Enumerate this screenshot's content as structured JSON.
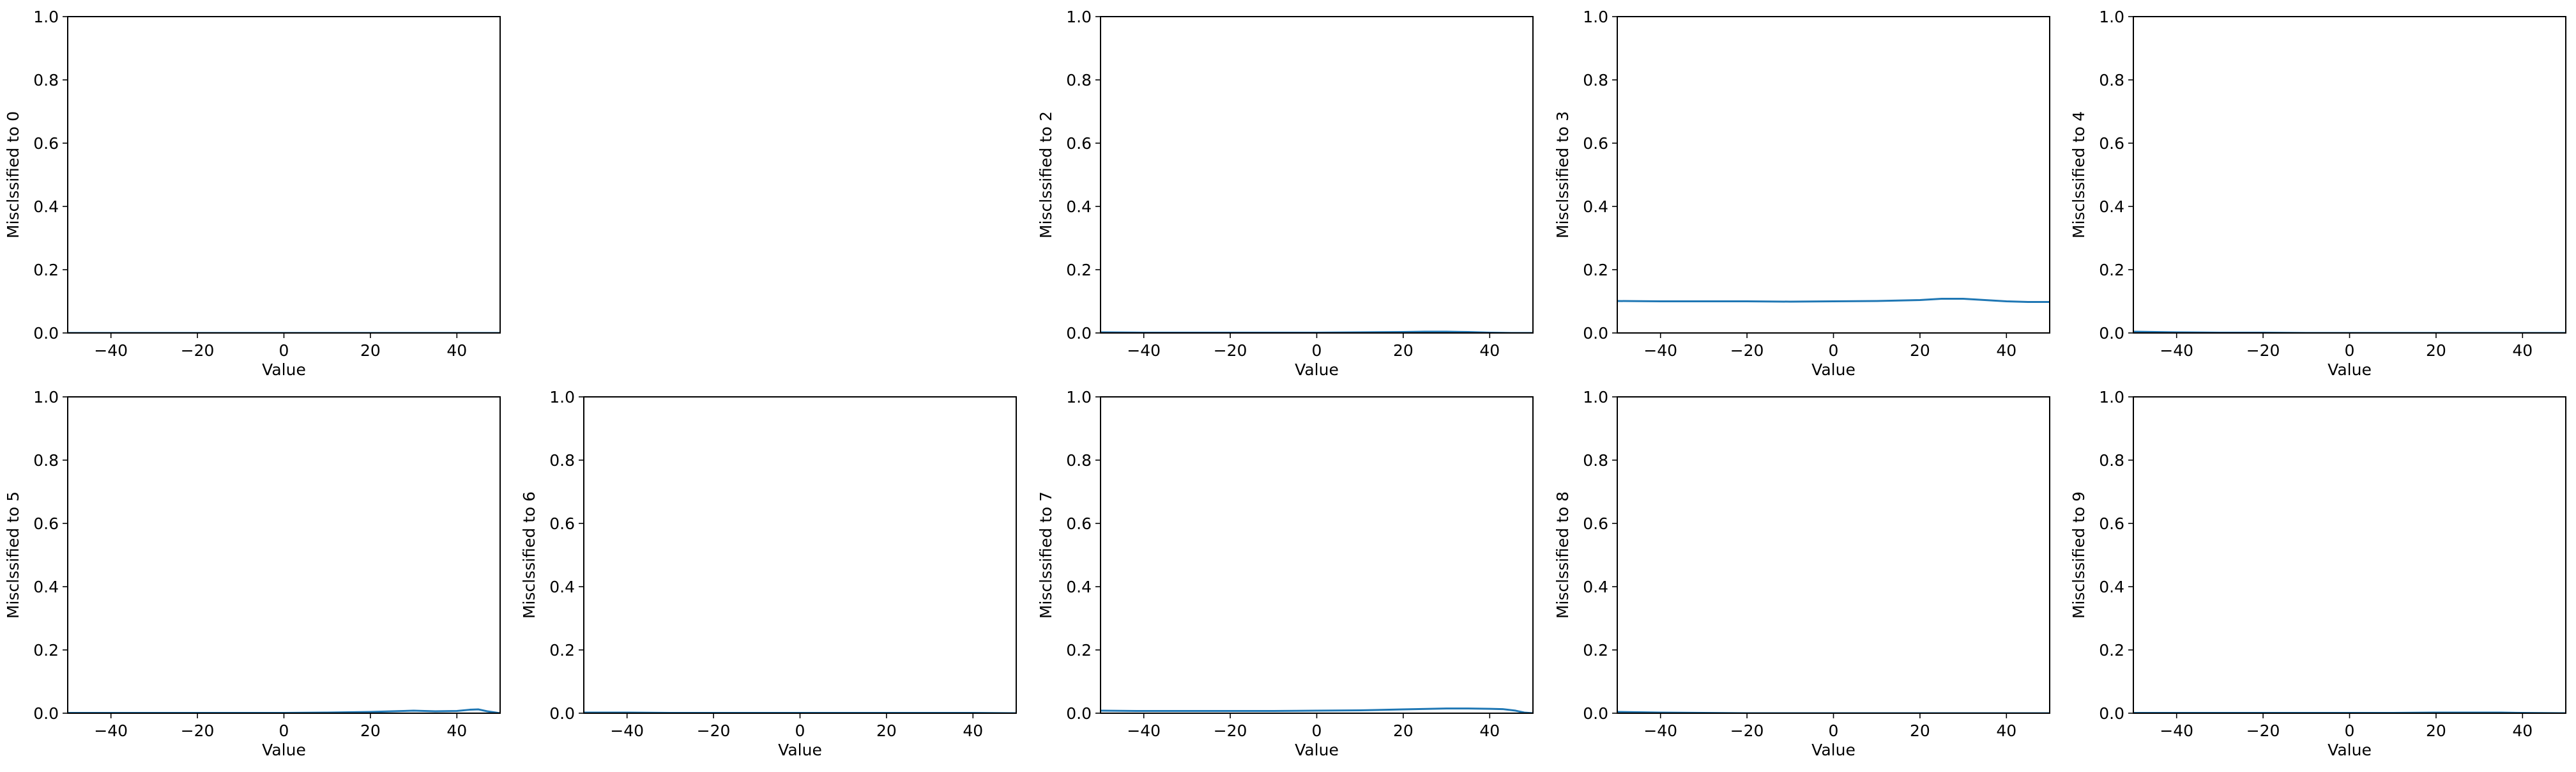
{
  "figure": {
    "background": "#ffffff",
    "line_color": "#1f77b4"
  },
  "chart_data": [
    {
      "type": "line",
      "row": 0,
      "col": 0,
      "xlabel": "Value",
      "ylabel": "Misclssified to 0",
      "xlim": [
        -50,
        50
      ],
      "ylim": [
        0,
        1
      ],
      "xticks": [
        -40,
        -20,
        0,
        20,
        40
      ],
      "xtick_labels": [
        "−40",
        "−20",
        "0",
        "20",
        "40"
      ],
      "yticks": [
        0,
        0.2,
        0.4,
        0.6,
        0.8,
        1.0
      ],
      "ytick_labels": [
        "0.0",
        "0.2",
        "0.4",
        "0.6",
        "0.8",
        "1.0"
      ],
      "series": [
        {
          "x": [
            -50,
            -40,
            -30,
            -20,
            -10,
            0,
            10,
            20,
            30,
            40,
            50
          ],
          "y": [
            0,
            0,
            0,
            0,
            0,
            0,
            0,
            0,
            0,
            0,
            0
          ]
        }
      ]
    },
    {
      "type": "line",
      "row": 0,
      "col": 2,
      "xlabel": "Value",
      "ylabel": "Misclssified to 2",
      "xlim": [
        -50,
        50
      ],
      "ylim": [
        0,
        1
      ],
      "xticks": [
        -40,
        -20,
        0,
        20,
        40
      ],
      "xtick_labels": [
        "−40",
        "−20",
        "0",
        "20",
        "40"
      ],
      "yticks": [
        0,
        0.2,
        0.4,
        0.6,
        0.8,
        1.0
      ],
      "ytick_labels": [
        "0.0",
        "0.2",
        "0.4",
        "0.6",
        "0.8",
        "1.0"
      ],
      "series": [
        {
          "x": [
            -50,
            -40,
            -30,
            -20,
            -10,
            0,
            10,
            20,
            25,
            30,
            35,
            40,
            45,
            50
          ],
          "y": [
            0.002,
            0.001,
            0.001,
            0.001,
            0.001,
            0.001,
            0.002,
            0.003,
            0.004,
            0.004,
            0.003,
            0.001,
            0.0,
            0.0
          ]
        }
      ]
    },
    {
      "type": "line",
      "row": 0,
      "col": 3,
      "xlabel": "Value",
      "ylabel": "Misclssified to 3",
      "xlim": [
        -50,
        50
      ],
      "ylim": [
        0,
        1
      ],
      "xticks": [
        -40,
        -20,
        0,
        20,
        40
      ],
      "xtick_labels": [
        "−40",
        "−20",
        "0",
        "20",
        "40"
      ],
      "yticks": [
        0,
        0.2,
        0.4,
        0.6,
        0.8,
        1.0
      ],
      "ytick_labels": [
        "0.0",
        "0.2",
        "0.4",
        "0.6",
        "0.8",
        "1.0"
      ],
      "series": [
        {
          "x": [
            -50,
            -40,
            -30,
            -20,
            -10,
            0,
            10,
            20,
            25,
            30,
            35,
            40,
            45,
            50
          ],
          "y": [
            0.101,
            0.1,
            0.1,
            0.1,
            0.099,
            0.1,
            0.101,
            0.104,
            0.108,
            0.108,
            0.104,
            0.1,
            0.098,
            0.098
          ]
        }
      ]
    },
    {
      "type": "line",
      "row": 0,
      "col": 4,
      "xlabel": "Value",
      "ylabel": "Misclssified to 4",
      "xlim": [
        -50,
        50
      ],
      "ylim": [
        0,
        1
      ],
      "xticks": [
        -40,
        -20,
        0,
        20,
        40
      ],
      "xtick_labels": [
        "−40",
        "−20",
        "0",
        "20",
        "40"
      ],
      "yticks": [
        0,
        0.2,
        0.4,
        0.6,
        0.8,
        1.0
      ],
      "ytick_labels": [
        "0.0",
        "0.2",
        "0.4",
        "0.6",
        "0.8",
        "1.0"
      ],
      "series": [
        {
          "x": [
            -50,
            -45,
            -40,
            -30,
            -20,
            -10,
            0,
            10,
            20,
            30,
            40,
            50
          ],
          "y": [
            0.004,
            0.003,
            0.002,
            0.001,
            0.001,
            0.0,
            0.0,
            0.0,
            0.0,
            0.0,
            0.0,
            0.0
          ]
        }
      ]
    },
    {
      "type": "line",
      "row": 1,
      "col": 0,
      "xlabel": "Value",
      "ylabel": "Misclssified to 5",
      "xlim": [
        -50,
        50
      ],
      "ylim": [
        0,
        1
      ],
      "xticks": [
        -40,
        -20,
        0,
        20,
        40
      ],
      "xtick_labels": [
        "−40",
        "−20",
        "0",
        "20",
        "40"
      ],
      "yticks": [
        0,
        0.2,
        0.4,
        0.6,
        0.8,
        1.0
      ],
      "ytick_labels": [
        "0.0",
        "0.2",
        "0.4",
        "0.6",
        "0.8",
        "1.0"
      ],
      "series": [
        {
          "x": [
            -50,
            -40,
            -30,
            -20,
            -10,
            0,
            10,
            20,
            25,
            30,
            35,
            40,
            43,
            45,
            47,
            50
          ],
          "y": [
            0.001,
            0.001,
            0.001,
            0.001,
            0.001,
            0.001,
            0.002,
            0.004,
            0.006,
            0.008,
            0.006,
            0.007,
            0.011,
            0.012,
            0.006,
            0.0
          ]
        }
      ]
    },
    {
      "type": "line",
      "row": 1,
      "col": 1,
      "xlabel": "Value",
      "ylabel": "Misclssified to 6",
      "xlim": [
        -50,
        50
      ],
      "ylim": [
        0,
        1
      ],
      "xticks": [
        -40,
        -20,
        0,
        20,
        40
      ],
      "xtick_labels": [
        "−40",
        "−20",
        "0",
        "20",
        "40"
      ],
      "yticks": [
        0,
        0.2,
        0.4,
        0.6,
        0.8,
        1.0
      ],
      "ytick_labels": [
        "0.0",
        "0.2",
        "0.4",
        "0.6",
        "0.8",
        "1.0"
      ],
      "series": [
        {
          "x": [
            -50,
            -40,
            -30,
            -20,
            -10,
            0,
            10,
            20,
            30,
            40,
            50
          ],
          "y": [
            0.002,
            0.002,
            0.001,
            0.001,
            0.001,
            0.001,
            0.001,
            0.001,
            0.001,
            0.001,
            0.0
          ]
        }
      ]
    },
    {
      "type": "line",
      "row": 1,
      "col": 2,
      "xlabel": "Value",
      "ylabel": "Misclssified to 7",
      "xlim": [
        -50,
        50
      ],
      "ylim": [
        0,
        1
      ],
      "xticks": [
        -40,
        -20,
        0,
        20,
        40
      ],
      "xtick_labels": [
        "−40",
        "−20",
        "0",
        "20",
        "40"
      ],
      "yticks": [
        0,
        0.2,
        0.4,
        0.6,
        0.8,
        1.0
      ],
      "ytick_labels": [
        "0.0",
        "0.2",
        "0.4",
        "0.6",
        "0.8",
        "1.0"
      ],
      "series": [
        {
          "x": [
            -50,
            -40,
            -30,
            -20,
            -10,
            0,
            10,
            20,
            30,
            35,
            40,
            43,
            46,
            48,
            50
          ],
          "y": [
            0.008,
            0.007,
            0.007,
            0.007,
            0.007,
            0.008,
            0.009,
            0.012,
            0.015,
            0.015,
            0.014,
            0.013,
            0.008,
            0.002,
            0.0
          ]
        }
      ]
    },
    {
      "type": "line",
      "row": 1,
      "col": 3,
      "xlabel": "Value",
      "ylabel": "Misclssified to 8",
      "xlim": [
        -50,
        50
      ],
      "ylim": [
        0,
        1
      ],
      "xticks": [
        -40,
        -20,
        0,
        20,
        40
      ],
      "xtick_labels": [
        "−40",
        "−20",
        "0",
        "20",
        "40"
      ],
      "yticks": [
        0,
        0.2,
        0.4,
        0.6,
        0.8,
        1.0
      ],
      "ytick_labels": [
        "0.0",
        "0.2",
        "0.4",
        "0.6",
        "0.8",
        "1.0"
      ],
      "series": [
        {
          "x": [
            -50,
            -45,
            -40,
            -30,
            -20,
            -10,
            0,
            10,
            20,
            30,
            40,
            50
          ],
          "y": [
            0.004,
            0.003,
            0.002,
            0.001,
            0.0,
            0.0,
            0.0,
            0.0,
            0.0,
            0.0,
            0.0,
            0.0
          ]
        }
      ]
    },
    {
      "type": "line",
      "row": 1,
      "col": 4,
      "xlabel": "Value",
      "ylabel": "Misclssified to 9",
      "xlim": [
        -50,
        50
      ],
      "ylim": [
        0,
        1
      ],
      "xticks": [
        -40,
        -20,
        0,
        20,
        40
      ],
      "xtick_labels": [
        "−40",
        "−20",
        "0",
        "20",
        "40"
      ],
      "yticks": [
        0,
        0.2,
        0.4,
        0.6,
        0.8,
        1.0
      ],
      "ytick_labels": [
        "0.0",
        "0.2",
        "0.4",
        "0.6",
        "0.8",
        "1.0"
      ],
      "series": [
        {
          "x": [
            -50,
            -40,
            -30,
            -20,
            -10,
            0,
            10,
            20,
            30,
            35,
            40,
            50
          ],
          "y": [
            0.001,
            0.001,
            0.001,
            0.001,
            0.001,
            0.001,
            0.001,
            0.002,
            0.002,
            0.002,
            0.001,
            0.0
          ]
        }
      ]
    }
  ]
}
